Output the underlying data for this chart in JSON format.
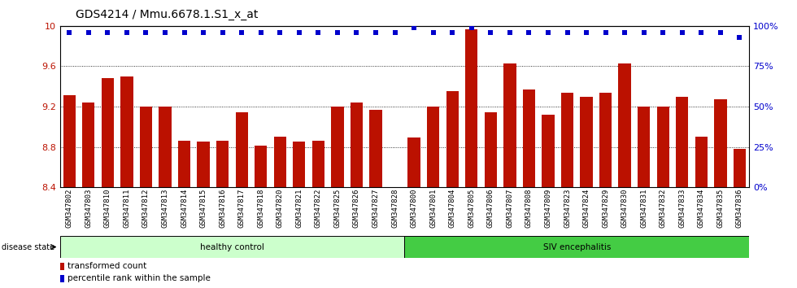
{
  "title": "GDS4214 / Mmu.6678.1.S1_x_at",
  "categories": [
    "GSM347802",
    "GSM347803",
    "GSM347810",
    "GSM347811",
    "GSM347812",
    "GSM347813",
    "GSM347814",
    "GSM347815",
    "GSM347816",
    "GSM347817",
    "GSM347818",
    "GSM347820",
    "GSM347821",
    "GSM347822",
    "GSM347825",
    "GSM347826",
    "GSM347827",
    "GSM347828",
    "GSM347800",
    "GSM347801",
    "GSM347804",
    "GSM347805",
    "GSM347806",
    "GSM347807",
    "GSM347808",
    "GSM347809",
    "GSM347823",
    "GSM347824",
    "GSM347829",
    "GSM347830",
    "GSM347831",
    "GSM347832",
    "GSM347833",
    "GSM347834",
    "GSM347835",
    "GSM347836"
  ],
  "bar_values": [
    9.31,
    9.24,
    9.48,
    9.5,
    9.2,
    9.2,
    8.86,
    8.85,
    8.86,
    9.14,
    8.81,
    8.9,
    8.85,
    8.86,
    9.2,
    9.24,
    9.17,
    8.4,
    8.89,
    9.2,
    9.35,
    9.97,
    9.14,
    9.63,
    9.37,
    9.12,
    9.34,
    9.3,
    9.34,
    9.63,
    9.2,
    9.2,
    9.3,
    8.9,
    9.27,
    8.78
  ],
  "percentile_values": [
    96,
    96,
    96,
    96,
    96,
    96,
    96,
    96,
    96,
    96,
    96,
    96,
    96,
    96,
    96,
    96,
    96,
    96,
    99,
    96,
    96,
    99,
    96,
    96,
    96,
    96,
    96,
    96,
    96,
    96,
    96,
    96,
    96,
    96,
    96,
    93
  ],
  "ylim_left": [
    8.4,
    10.0
  ],
  "ylim_right": [
    0,
    100
  ],
  "yticks_left": [
    8.4,
    8.8,
    9.2,
    9.6,
    10.0
  ],
  "yticks_right": [
    0,
    25,
    50,
    75,
    100
  ],
  "ytick_labels_right": [
    "0%",
    "25%",
    "50%",
    "75%",
    "100%"
  ],
  "bar_color": "#bb1100",
  "percentile_color": "#0000cc",
  "grid_color": "#000000",
  "bg_color": "#ffffff",
  "healthy_count": 18,
  "healthy_label": "healthy control",
  "siv_label": "SIV encephalitis",
  "disease_state_label": "disease state",
  "legend_bar_label": "transformed count",
  "legend_pct_label": "percentile rank within the sample",
  "healthy_bg": "#ccffcc",
  "siv_bg": "#44cc44",
  "title_fontsize": 10,
  "tick_label_fontsize": 6.5,
  "axis_fontsize": 8
}
